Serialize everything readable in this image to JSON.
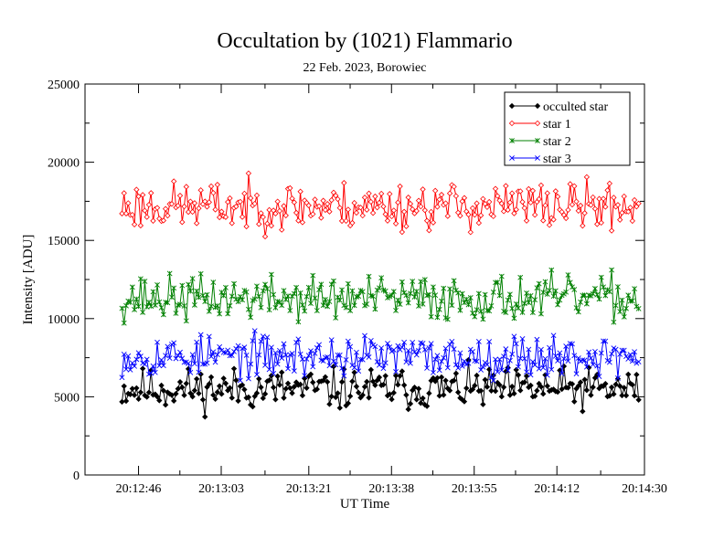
{
  "chart_data": {
    "type": "line",
    "title": "Occultation by (1021) Flammario",
    "subtitle": "22 Feb. 2023, Borowiec",
    "xlabel": "UT Time",
    "ylabel": "Intensity [ADU]",
    "xlim_seconds": [
      755,
      870
    ],
    "ylim": [
      0,
      25000
    ],
    "x_ticks": [
      {
        "value": 766,
        "label": "20:12:46"
      },
      {
        "value": 783,
        "label": "20:13:03"
      },
      {
        "value": 801,
        "label": "20:13:21"
      },
      {
        "value": 818,
        "label": "20:13:38"
      },
      {
        "value": 835,
        "label": "20:13:55"
      },
      {
        "value": 852,
        "label": "20:14:12"
      },
      {
        "value": 870,
        "label": "20:14:30"
      }
    ],
    "y_ticks": [
      0,
      5000,
      10000,
      15000,
      20000,
      25000
    ],
    "y_minor_step": 2500,
    "x_range_data": [
      762.6,
      868.8
    ],
    "n_points": 250,
    "legend_position": "top-right",
    "grid": false,
    "series": [
      {
        "name": "occulted star",
        "color": "#000000",
        "marker": "diamond-filled",
        "mean": 5500,
        "amplitude": 1300,
        "seed": 11
      },
      {
        "name": "star 1",
        "color": "#ff0000",
        "marker": "diamond-open",
        "mean": 17200,
        "amplitude": 1500,
        "seed": 23
      },
      {
        "name": "star 2",
        "color": "#008000",
        "marker": "asterisk",
        "mean": 11300,
        "amplitude": 1400,
        "seed": 37
      },
      {
        "name": "star 3",
        "color": "#0000ff",
        "marker": "cross",
        "mean": 7600,
        "amplitude": 1300,
        "seed": 53
      }
    ]
  }
}
